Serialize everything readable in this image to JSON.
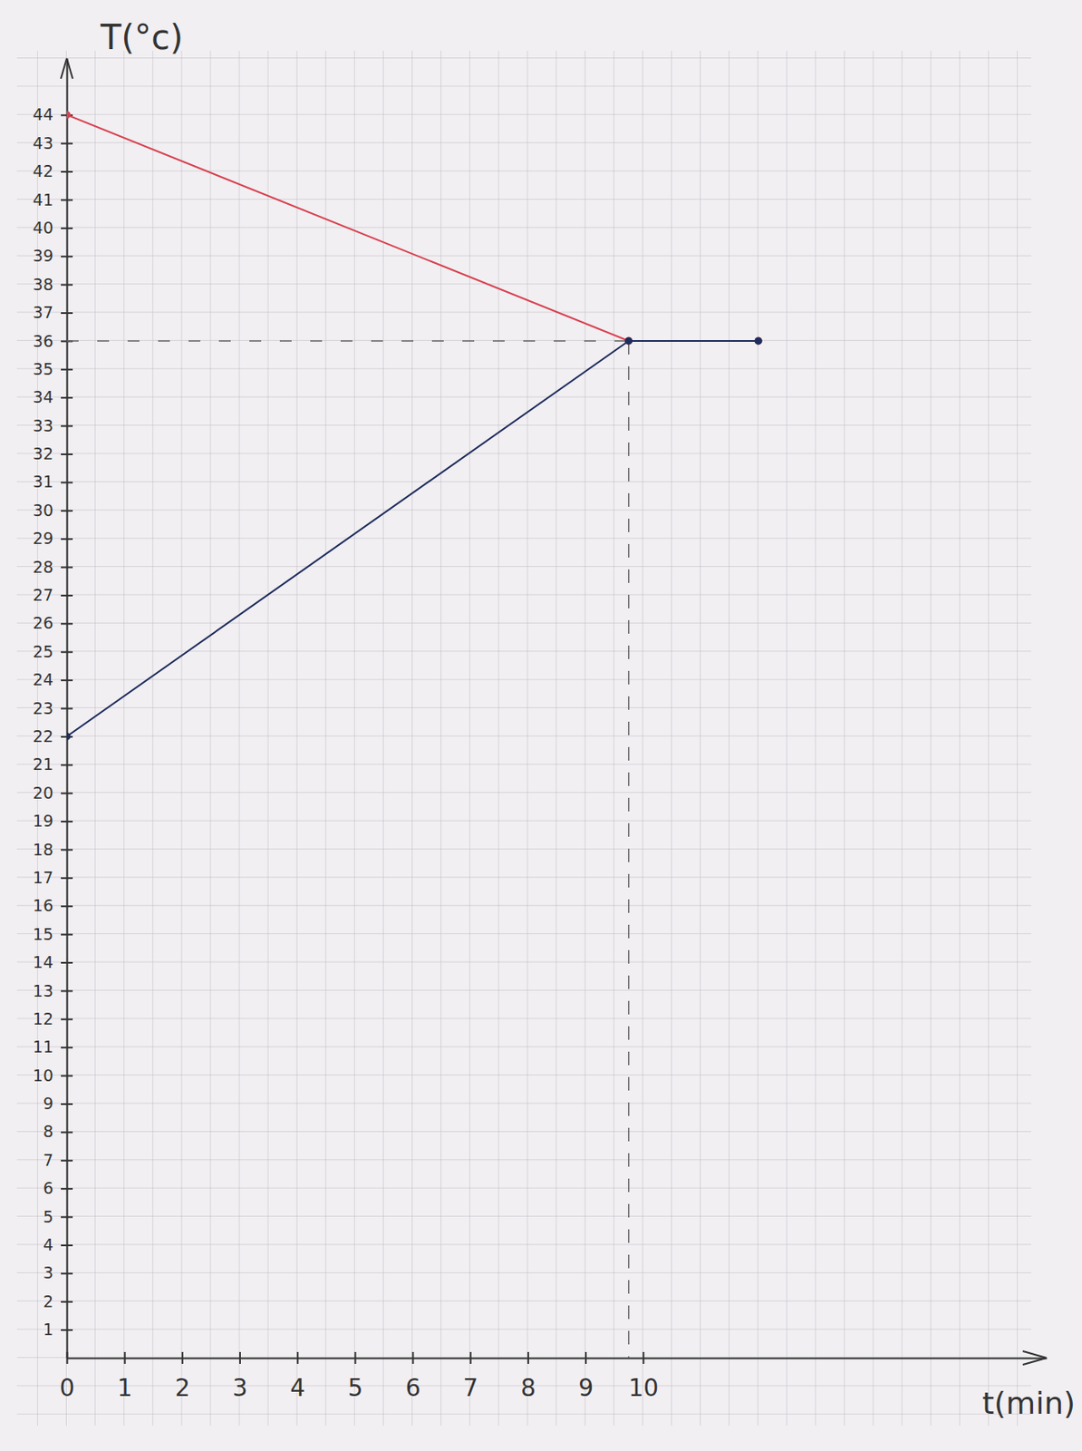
{
  "chart_data": {
    "type": "line",
    "x_label": "t(min)",
    "y_label": "T(°c)",
    "x": [
      0,
      9.75,
      12
    ],
    "series": [
      {
        "color": "#d8414f",
        "values": [
          44,
          36,
          36
        ],
        "marker": "circle",
        "line_style": "solid"
      },
      {
        "color": "#1f2d5c",
        "values": [
          22,
          36,
          36
        ],
        "marker": "circle",
        "line_style": "solid"
      }
    ],
    "xlim": [
      0,
      17
    ],
    "ylim": [
      0,
      46
    ],
    "xticks": [
      0,
      1,
      2,
      3,
      4,
      5,
      6,
      7,
      8,
      9,
      10
    ],
    "yticks": [
      1,
      2,
      3,
      4,
      5,
      6,
      7,
      8,
      9,
      10,
      11,
      12,
      13,
      14,
      15,
      16,
      17,
      18,
      19,
      20,
      21,
      22,
      23,
      24,
      25,
      26,
      27,
      28,
      29,
      30,
      31,
      32,
      33,
      34,
      35,
      36,
      37,
      38,
      39,
      40,
      41,
      42,
      43,
      44
    ]
  }
}
